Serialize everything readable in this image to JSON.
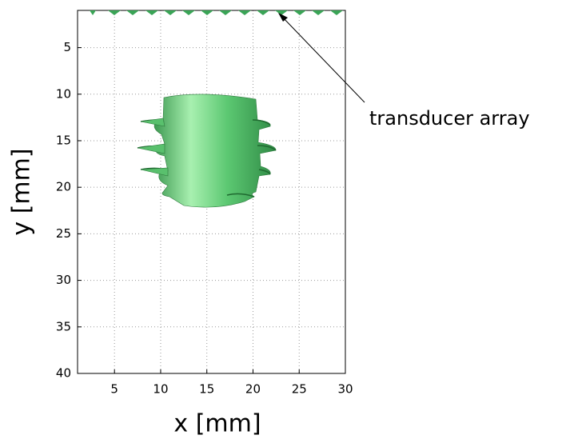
{
  "chart_data": {
    "type": "plot",
    "xlabel": "x [mm]",
    "ylabel": "y [mm]",
    "xlim": [
      1,
      30
    ],
    "ylim": [
      1,
      40
    ],
    "y_reversed": true,
    "xticks": [
      5,
      10,
      15,
      20,
      25,
      30
    ],
    "yticks": [
      5,
      10,
      15,
      20,
      25,
      30,
      35,
      40
    ],
    "grid": true,
    "annotation": "transducer array"
  }
}
